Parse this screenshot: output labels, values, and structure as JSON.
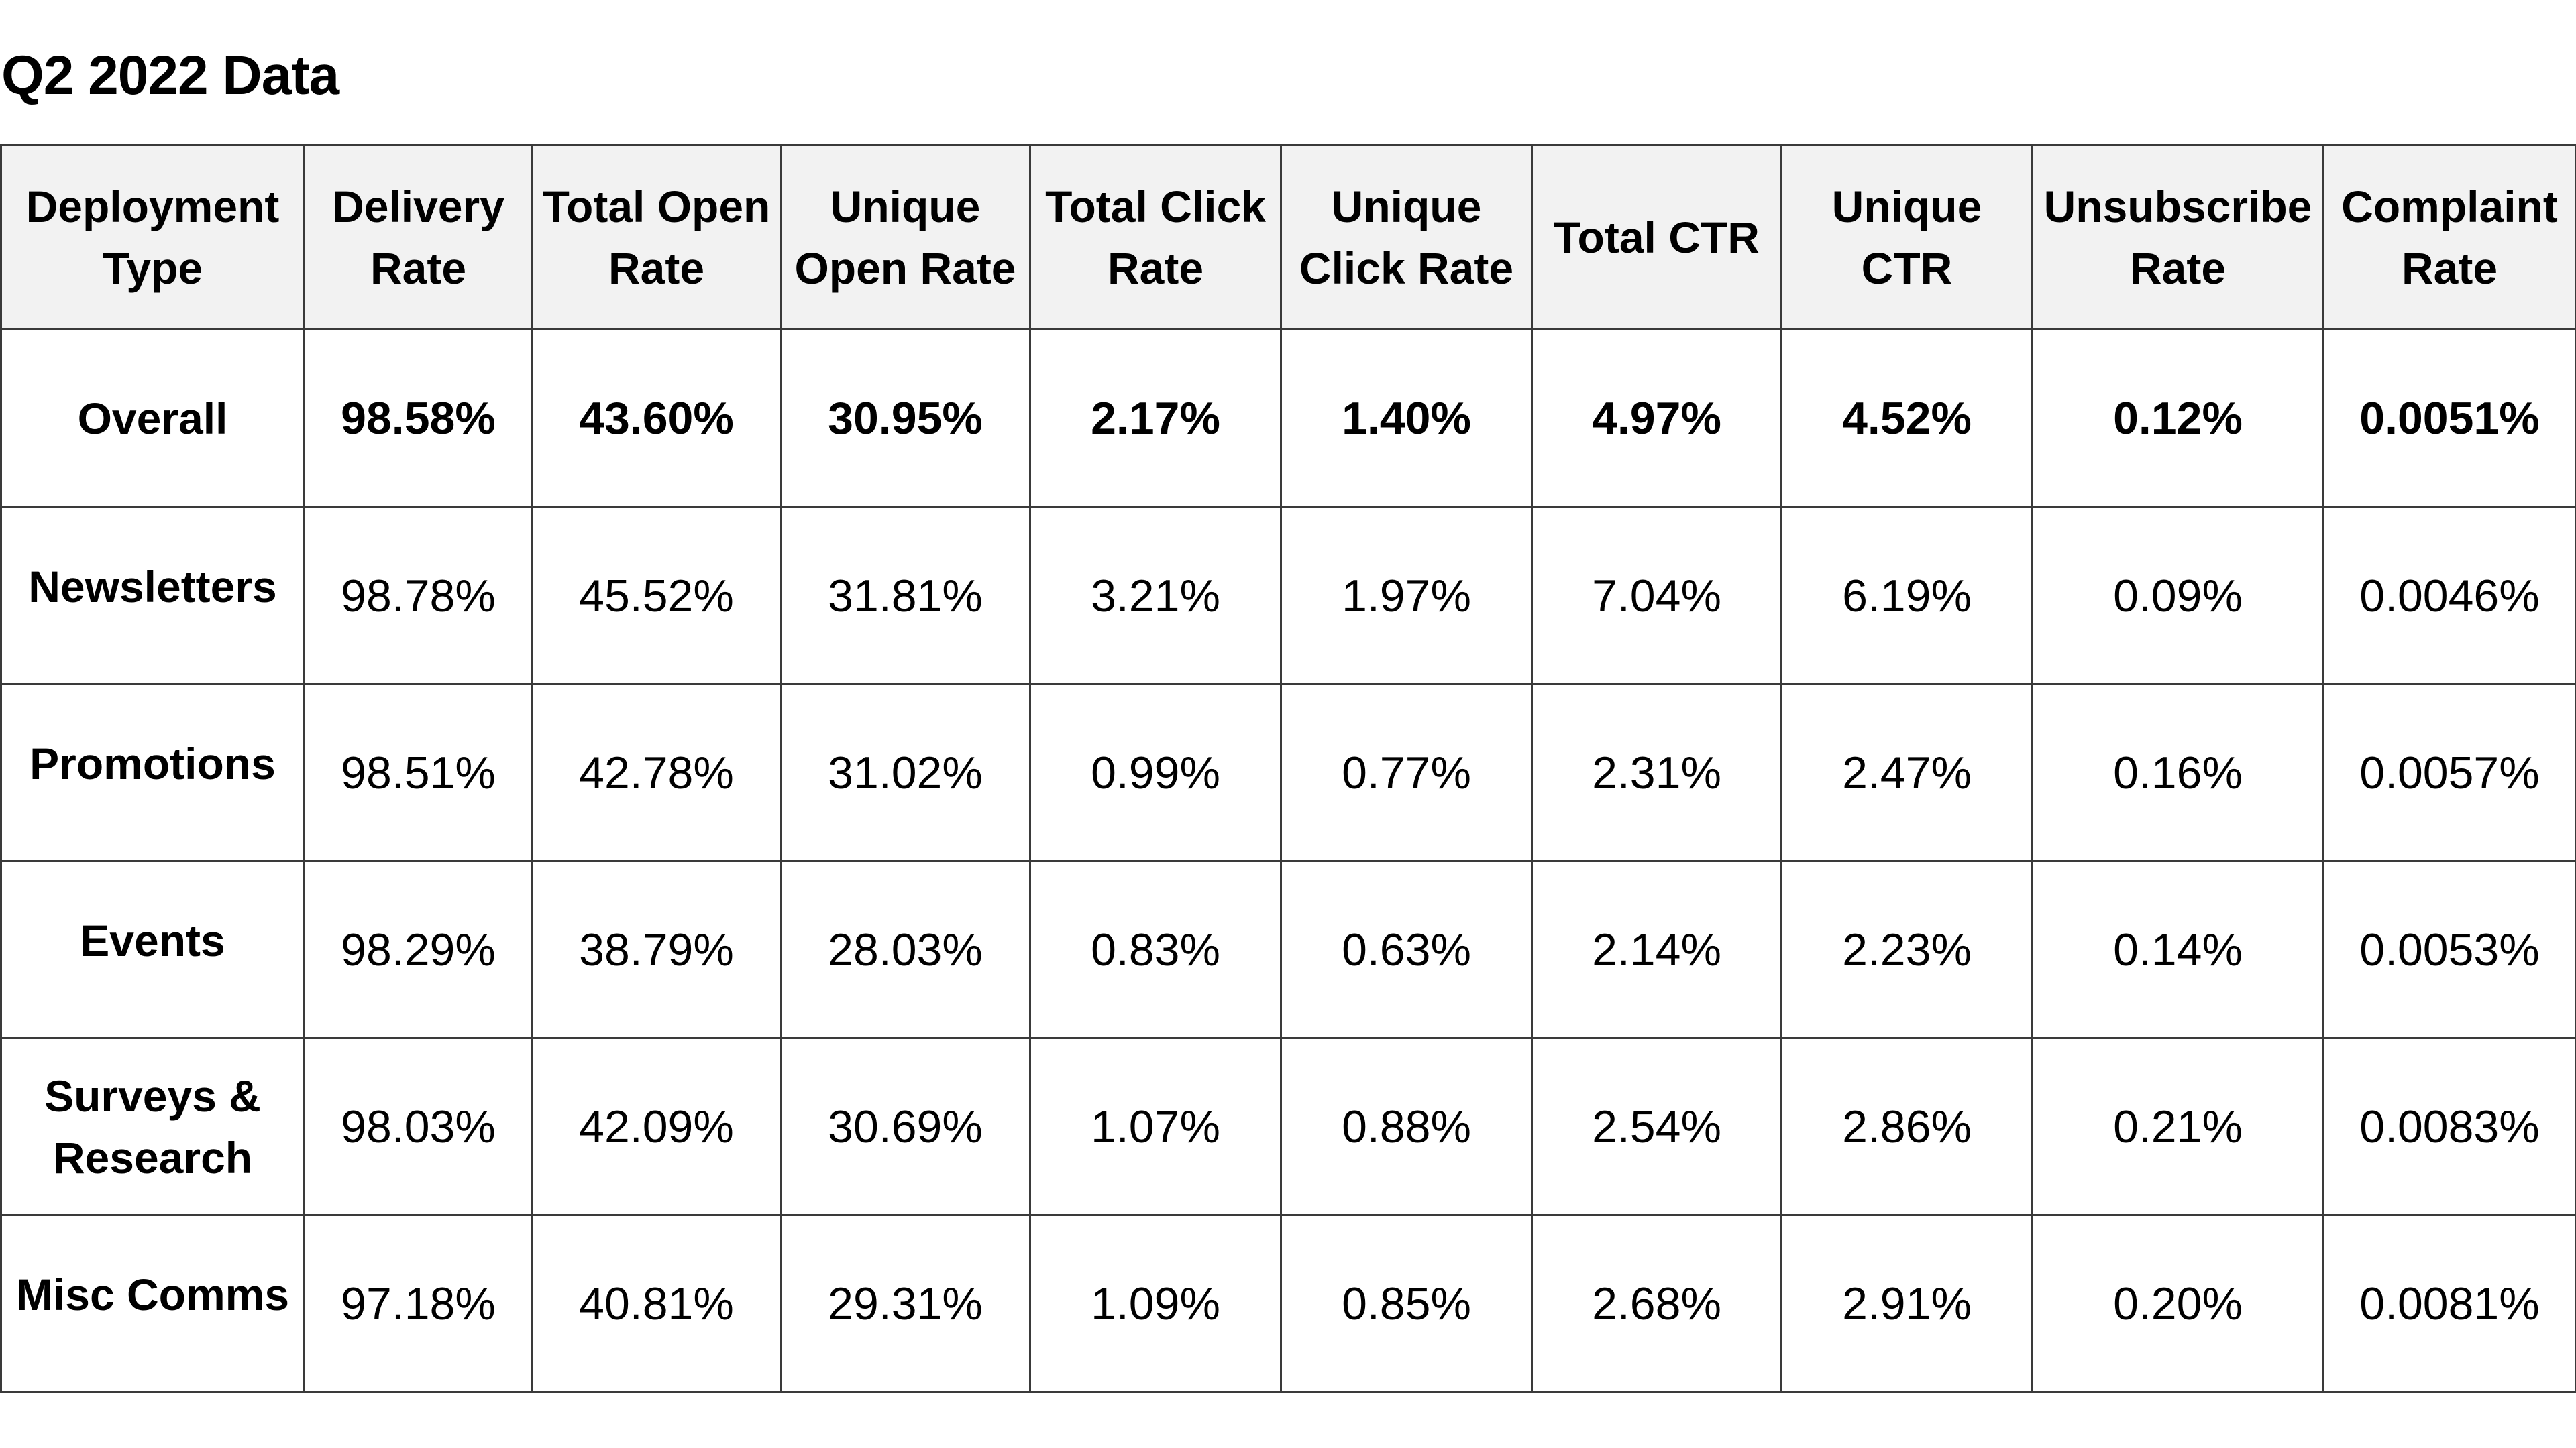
{
  "title": "Q2 2022 Data",
  "table": {
    "headers": [
      "Deployment Type",
      "Delivery Rate",
      "Total Open Rate",
      "Unique Open Rate",
      "Total Click Rate",
      "Unique Click Rate",
      "Total CTR",
      "Unique CTR",
      "Unsubscribe Rate",
      "Complaint Rate"
    ],
    "rows": [
      [
        "Overall",
        "98.58%",
        "43.60%",
        "30.95%",
        "2.17%",
        "1.40%",
        "4.97%",
        "4.52%",
        "0.12%",
        "0.0051%"
      ],
      [
        "Newsletters",
        "98.78%",
        "45.52%",
        "31.81%",
        "3.21%",
        "1.97%",
        "7.04%",
        "6.19%",
        "0.09%",
        "0.0046%"
      ],
      [
        "Promotions",
        "98.51%",
        "42.78%",
        "31.02%",
        "0.99%",
        "0.77%",
        "2.31%",
        "2.47%",
        "0.16%",
        "0.0057%"
      ],
      [
        "Events",
        "98.29%",
        "38.79%",
        "28.03%",
        "0.83%",
        "0.63%",
        "2.14%",
        "2.23%",
        "0.14%",
        "0.0053%"
      ],
      [
        "Surveys & Research",
        "98.03%",
        "42.09%",
        "30.69%",
        "1.07%",
        "0.88%",
        "2.54%",
        "2.86%",
        "0.21%",
        "0.0083%"
      ],
      [
        "Misc Comms",
        "97.18%",
        "40.81%",
        "29.31%",
        "1.09%",
        "0.85%",
        "2.68%",
        "2.91%",
        "0.20%",
        "0.0081%"
      ]
    ]
  }
}
